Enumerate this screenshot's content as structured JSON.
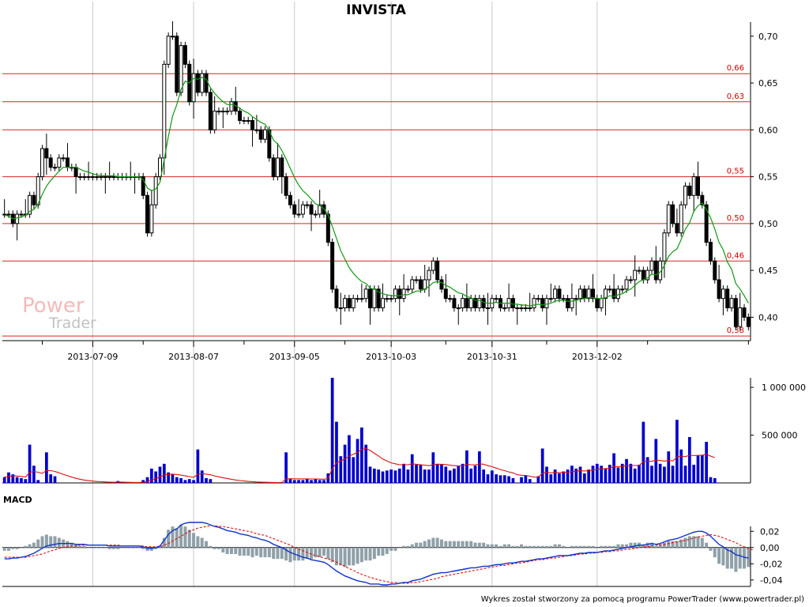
{
  "title": "INVISTA",
  "footer": "Wykres został stworzony za pomocą programu PowerTrader (www.powertrader.pl)",
  "watermark": {
    "line1": "Power",
    "line2": "Trader"
  },
  "colors": {
    "level_line": "#dd2222",
    "ma_price": "#119911",
    "volume_bar": "#0000cc",
    "volume_ma": "#dd1111",
    "macd_line": "#1133cc",
    "signal_line": "#dd1111",
    "histogram": "#8fa0a8",
    "grid": "#c8c8c8"
  },
  "chart_data": [
    {
      "type": "candlestick",
      "panel": "price",
      "y_ticks": [
        "0,70",
        "0,65",
        "0,60",
        "0,55",
        "0,50",
        "0,45",
        "0,40"
      ],
      "ylim": [
        0.375,
        0.715
      ],
      "x_tick_labels": [
        "2013-07-09",
        "2013-08-07",
        "2013-09-05",
        "2013-10-03",
        "2013-10-31",
        "2013-12-02"
      ],
      "levels": [
        {
          "value": 0.66,
          "label": "0,66"
        },
        {
          "value": 0.63,
          "label": "0,63"
        },
        {
          "value": 0.6,
          "label": ""
        },
        {
          "value": 0.55,
          "label": "0,55"
        },
        {
          "value": 0.5,
          "label": "0,50"
        },
        {
          "value": 0.46,
          "label": "0,46"
        },
        {
          "value": 0.38,
          "label": "0,38"
        }
      ],
      "closes": [
        0.51,
        0.51,
        0.5,
        0.51,
        0.51,
        0.51,
        0.53,
        0.52,
        0.55,
        0.58,
        0.57,
        0.56,
        0.56,
        0.57,
        0.57,
        0.56,
        0.56,
        0.55,
        0.55,
        0.55,
        0.55,
        0.55,
        0.55,
        0.55,
        0.55,
        0.55,
        0.55,
        0.55,
        0.55,
        0.55,
        0.55,
        0.55,
        0.55,
        0.53,
        0.49,
        0.52,
        0.55,
        0.57,
        0.67,
        0.7,
        0.7,
        0.64,
        0.69,
        0.67,
        0.63,
        0.66,
        0.64,
        0.66,
        0.64,
        0.6,
        0.62,
        0.62,
        0.62,
        0.62,
        0.63,
        0.62,
        0.61,
        0.61,
        0.61,
        0.6,
        0.6,
        0.59,
        0.6,
        0.57,
        0.55,
        0.57,
        0.55,
        0.53,
        0.52,
        0.51,
        0.51,
        0.52,
        0.52,
        0.51,
        0.51,
        0.52,
        0.51,
        0.48,
        0.43,
        0.41,
        0.41,
        0.42,
        0.41,
        0.42,
        0.42,
        0.42,
        0.43,
        0.41,
        0.43,
        0.41,
        0.42,
        0.42,
        0.42,
        0.43,
        0.42,
        0.43,
        0.43,
        0.44,
        0.44,
        0.43,
        0.44,
        0.45,
        0.46,
        0.44,
        0.43,
        0.42,
        0.42,
        0.41,
        0.41,
        0.42,
        0.41,
        0.42,
        0.41,
        0.42,
        0.41,
        0.41,
        0.42,
        0.42,
        0.41,
        0.41,
        0.42,
        0.41,
        0.41,
        0.41,
        0.41,
        0.41,
        0.42,
        0.42,
        0.41,
        0.42,
        0.42,
        0.43,
        0.42,
        0.42,
        0.41,
        0.42,
        0.42,
        0.43,
        0.42,
        0.43,
        0.42,
        0.41,
        0.42,
        0.43,
        0.43,
        0.42,
        0.43,
        0.43,
        0.44,
        0.44,
        0.45,
        0.45,
        0.44,
        0.45,
        0.46,
        0.44,
        0.46,
        0.49,
        0.52,
        0.5,
        0.49,
        0.52,
        0.54,
        0.53,
        0.55,
        0.53,
        0.52,
        0.48,
        0.46,
        0.44,
        0.42,
        0.43,
        0.41,
        0.42,
        0.39,
        0.41,
        0.4,
        0.39
      ],
      "ma": [
        0.509,
        0.508,
        0.505,
        0.506,
        0.507,
        0.509,
        0.513,
        0.515,
        0.521,
        0.531,
        0.54,
        0.546,
        0.551,
        0.556,
        0.56,
        0.56,
        0.56,
        0.56,
        0.558,
        0.556,
        0.555,
        0.553,
        0.552,
        0.551,
        0.551,
        0.551,
        0.551,
        0.55,
        0.55,
        0.55,
        0.55,
        0.55,
        0.55,
        0.547,
        0.538,
        0.535,
        0.537,
        0.544,
        0.568,
        0.593,
        0.615,
        0.627,
        0.643,
        0.652,
        0.65,
        0.655,
        0.654,
        0.656,
        0.654,
        0.645,
        0.639,
        0.634,
        0.63,
        0.627,
        0.627,
        0.626,
        0.623,
        0.62,
        0.618,
        0.614,
        0.611,
        0.608,
        0.606,
        0.599,
        0.589,
        0.585,
        0.578,
        0.569,
        0.559,
        0.549,
        0.541,
        0.535,
        0.531,
        0.526,
        0.521,
        0.519,
        0.516,
        0.509,
        0.497,
        0.484,
        0.471,
        0.462,
        0.453,
        0.447,
        0.442,
        0.438,
        0.436,
        0.431,
        0.43,
        0.427,
        0.425,
        0.424,
        0.423,
        0.423,
        0.423,
        0.424,
        0.424,
        0.426,
        0.428,
        0.428,
        0.43,
        0.433,
        0.437,
        0.438,
        0.437,
        0.434,
        0.432,
        0.429,
        0.426,
        0.425,
        0.422,
        0.421,
        0.418,
        0.418,
        0.416,
        0.415,
        0.415,
        0.416,
        0.415,
        0.415,
        0.415,
        0.414,
        0.414,
        0.413,
        0.413,
        0.412,
        0.413,
        0.414,
        0.413,
        0.414,
        0.415,
        0.417,
        0.418,
        0.418,
        0.417,
        0.417,
        0.418,
        0.419,
        0.42,
        0.421,
        0.421,
        0.42,
        0.42,
        0.421,
        0.423,
        0.422,
        0.424,
        0.425,
        0.428,
        0.43,
        0.434,
        0.438,
        0.44,
        0.442,
        0.446,
        0.445,
        0.448,
        0.455,
        0.465,
        0.47,
        0.473,
        0.483,
        0.494,
        0.501,
        0.513,
        0.519,
        0.522,
        0.515,
        0.506,
        0.494,
        0.48,
        0.472,
        0.459,
        0.451,
        0.436,
        0.43,
        0.423,
        0.415
      ]
    },
    {
      "type": "bar",
      "panel": "volume",
      "y_ticks": [
        "1 000 000",
        "500 000"
      ],
      "ylim": [
        0,
        1100000
      ],
      "values": [
        60000,
        110000,
        90000,
        60000,
        50000,
        40000,
        400000,
        180000,
        30000,
        0,
        320000,
        90000,
        70000,
        0,
        0,
        0,
        0,
        0,
        0,
        0,
        0,
        0,
        0,
        0,
        0,
        0,
        0,
        20000,
        0,
        0,
        0,
        0,
        0,
        30000,
        60000,
        150000,
        120000,
        170000,
        200000,
        110000,
        90000,
        60000,
        50000,
        30000,
        40000,
        30000,
        350000,
        130000,
        50000,
        40000,
        0,
        0,
        0,
        0,
        0,
        0,
        0,
        0,
        0,
        0,
        0,
        0,
        0,
        0,
        0,
        0,
        0,
        320000,
        40000,
        30000,
        30000,
        30000,
        40000,
        30000,
        40000,
        30000,
        30000,
        100000,
        1100000,
        640000,
        280000,
        400000,
        500000,
        270000,
        460000,
        580000,
        400000,
        170000,
        150000,
        140000,
        120000,
        130000,
        140000,
        130000,
        150000,
        200000,
        140000,
        300000,
        190000,
        190000,
        140000,
        140000,
        320000,
        200000,
        190000,
        170000,
        130000,
        150000,
        180000,
        200000,
        340000,
        150000,
        180000,
        330000,
        140000,
        90000,
        130000,
        90000,
        80000,
        80000,
        70000,
        50000,
        0,
        60000,
        80000,
        40000,
        0,
        70000,
        360000,
        170000,
        90000,
        140000,
        100000,
        120000,
        140000,
        180000,
        150000,
        170000,
        100000,
        140000,
        180000,
        200000,
        180000,
        150000,
        190000,
        310000,
        160000,
        200000,
        250000,
        200000,
        150000,
        190000,
        640000,
        270000,
        180000,
        460000,
        200000,
        170000,
        330000,
        180000,
        660000,
        350000,
        180000,
        480000,
        190000,
        290000,
        290000,
        430000,
        60000,
        50000
      ],
      "ma": [
        60000,
        70000,
        75000,
        72000,
        68000,
        62000,
        110000,
        120000,
        112000,
        100000,
        130000,
        128000,
        120000,
        105000,
        90000,
        75000,
        60000,
        48000,
        38000,
        30000,
        24000,
        19000,
        15000,
        12000,
        10000,
        8000,
        7000,
        9000,
        8000,
        7000,
        6000,
        5000,
        5000,
        8000,
        14000,
        32000,
        45000,
        62000,
        82000,
        90000,
        92000,
        88000,
        82000,
        74000,
        66000,
        58000,
        90000,
        98000,
        92000,
        85000,
        74000,
        64000,
        55000,
        46000,
        38000,
        31000,
        25000,
        20000,
        16000,
        13000,
        10000,
        8000,
        7000,
        6000,
        5000,
        4000,
        4000,
        42000,
        44000,
        43000,
        42000,
        42000,
        42000,
        41000,
        41000,
        40000,
        39000,
        46000,
        150000,
        210000,
        230000,
        250000,
        280000,
        300000,
        320000,
        350000,
        360000,
        340000,
        310000,
        280000,
        250000,
        230000,
        210000,
        200000,
        190000,
        190000,
        190000,
        200000,
        195000,
        190000,
        185000,
        180000,
        190000,
        195000,
        195000,
        192000,
        185000,
        180000,
        178000,
        178000,
        195000,
        190000,
        188000,
        200000,
        195000,
        180000,
        170000,
        155000,
        140000,
        128000,
        115000,
        105000,
        85000,
        80000,
        78000,
        70000,
        60000,
        62000,
        100000,
        110000,
        105000,
        110000,
        108000,
        110000,
        112000,
        118000,
        122000,
        128000,
        125000,
        128000,
        135000,
        142000,
        148000,
        150000,
        155000,
        170000,
        168000,
        172000,
        180000,
        183000,
        182000,
        183000,
        220000,
        228000,
        225000,
        240000,
        235000,
        228000,
        235000,
        230000,
        270000,
        280000,
        275000,
        290000,
        285000,
        288000,
        290000,
        300000,
        280000,
        265000
      ]
    },
    {
      "type": "line",
      "panel": "macd",
      "title": "MACD",
      "y_ticks": [
        "0,02",
        "0,00",
        "-0,02",
        "-0,04"
      ],
      "ylim": [
        -0.048,
        0.032
      ],
      "macd": [
        -0.014,
        -0.014,
        -0.013,
        -0.013,
        -0.012,
        -0.011,
        -0.009,
        -0.007,
        -0.004,
        -0.001,
        0.002,
        0.003,
        0.004,
        0.005,
        0.005,
        0.005,
        0.005,
        0.004,
        0.004,
        0.004,
        0.003,
        0.003,
        0.003,
        0.003,
        0.003,
        0.002,
        0.002,
        0.002,
        0.002,
        0.002,
        0.002,
        0.002,
        0.002,
        0.001,
        -0.001,
        -0.001,
        0.0,
        0.002,
        0.009,
        0.016,
        0.021,
        0.023,
        0.028,
        0.03,
        0.031,
        0.031,
        0.031,
        0.031,
        0.03,
        0.028,
        0.026,
        0.025,
        0.023,
        0.021,
        0.02,
        0.019,
        0.017,
        0.016,
        0.015,
        0.013,
        0.012,
        0.01,
        0.009,
        0.007,
        0.004,
        0.002,
        0.0,
        -0.003,
        -0.006,
        -0.008,
        -0.01,
        -0.012,
        -0.013,
        -0.015,
        -0.016,
        -0.017,
        -0.018,
        -0.021,
        -0.025,
        -0.029,
        -0.032,
        -0.035,
        -0.037,
        -0.039,
        -0.041,
        -0.042,
        -0.043,
        -0.045,
        -0.045,
        -0.045,
        -0.046,
        -0.046,
        -0.045,
        -0.045,
        -0.044,
        -0.043,
        -0.043,
        -0.041,
        -0.04,
        -0.039,
        -0.037,
        -0.035,
        -0.033,
        -0.032,
        -0.031,
        -0.031,
        -0.03,
        -0.029,
        -0.028,
        -0.027,
        -0.026,
        -0.025,
        -0.025,
        -0.024,
        -0.023,
        -0.023,
        -0.022,
        -0.021,
        -0.021,
        -0.02,
        -0.019,
        -0.019,
        -0.018,
        -0.017,
        -0.017,
        -0.016,
        -0.015,
        -0.014,
        -0.014,
        -0.013,
        -0.012,
        -0.011,
        -0.01,
        -0.01,
        -0.01,
        -0.009,
        -0.008,
        -0.007,
        -0.007,
        -0.006,
        -0.006,
        -0.006,
        -0.005,
        -0.004,
        -0.004,
        -0.003,
        -0.002,
        -0.001,
        0.0,
        0.001,
        0.002,
        0.003,
        0.003,
        0.004,
        0.005,
        0.004,
        0.005,
        0.007,
        0.009,
        0.01,
        0.011,
        0.013,
        0.015,
        0.017,
        0.019,
        0.02,
        0.02,
        0.018,
        0.014,
        0.009,
        0.004,
        0.001,
        -0.003,
        -0.005,
        -0.009,
        -0.01,
        -0.012,
        -0.013
      ],
      "signal": [
        -0.012,
        -0.012,
        -0.012,
        -0.012,
        -0.012,
        -0.012,
        -0.011,
        -0.01,
        -0.009,
        -0.008,
        -0.006,
        -0.004,
        -0.003,
        -0.001,
        0.0,
        0.001,
        0.002,
        0.002,
        0.003,
        0.003,
        0.003,
        0.003,
        0.003,
        0.003,
        0.003,
        0.003,
        0.003,
        0.003,
        0.002,
        0.002,
        0.002,
        0.002,
        0.002,
        0.002,
        0.001,
        0.001,
        0.001,
        0.001,
        0.003,
        0.005,
        0.008,
        0.011,
        0.014,
        0.017,
        0.02,
        0.022,
        0.024,
        0.025,
        0.026,
        0.027,
        0.027,
        0.026,
        0.026,
        0.025,
        0.024,
        0.023,
        0.022,
        0.021,
        0.02,
        0.019,
        0.017,
        0.016,
        0.015,
        0.013,
        0.011,
        0.009,
        0.007,
        0.005,
        0.003,
        0.0,
        -0.002,
        -0.004,
        -0.006,
        -0.008,
        -0.01,
        -0.011,
        -0.013,
        -0.014,
        -0.016,
        -0.018,
        -0.021,
        -0.023,
        -0.026,
        -0.028,
        -0.031,
        -0.033,
        -0.035,
        -0.037,
        -0.038,
        -0.04,
        -0.041,
        -0.042,
        -0.043,
        -0.043,
        -0.044,
        -0.044,
        -0.044,
        -0.043,
        -0.043,
        -0.042,
        -0.041,
        -0.04,
        -0.039,
        -0.038,
        -0.036,
        -0.035,
        -0.034,
        -0.033,
        -0.032,
        -0.031,
        -0.03,
        -0.029,
        -0.028,
        -0.027,
        -0.026,
        -0.025,
        -0.024,
        -0.023,
        -0.022,
        -0.022,
        -0.021,
        -0.02,
        -0.019,
        -0.019,
        -0.018,
        -0.017,
        -0.016,
        -0.015,
        -0.015,
        -0.014,
        -0.013,
        -0.013,
        -0.012,
        -0.011,
        -0.01,
        -0.01,
        -0.009,
        -0.008,
        -0.008,
        -0.007,
        -0.007,
        -0.006,
        -0.006,
        -0.005,
        -0.005,
        -0.004,
        -0.004,
        -0.003,
        -0.002,
        -0.002,
        -0.001,
        0.0,
        0.001,
        0.001,
        0.002,
        0.003,
        0.003,
        0.004,
        0.005,
        0.006,
        0.007,
        0.008,
        0.009,
        0.01,
        0.012,
        0.013,
        0.014,
        0.015,
        0.016,
        0.015,
        0.014,
        0.012,
        0.01,
        0.008,
        0.006,
        0.003,
        0.001,
        -0.001,
        -0.003
      ]
    }
  ]
}
